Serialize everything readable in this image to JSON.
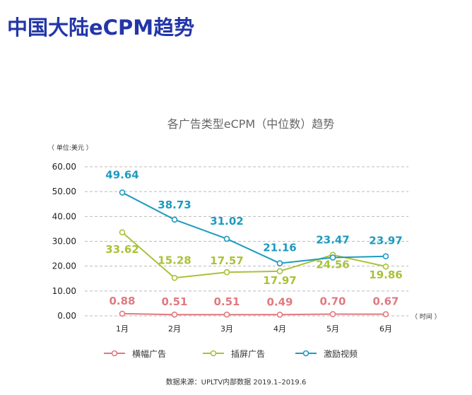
{
  "page_title": "中国大陆eCPM趋势",
  "chart_data": {
    "type": "line",
    "title": "各广告类型eCPM（中位数）趋势",
    "ylabel": "（ 单位:美元 ）",
    "xlabel": "（ 时间 ）",
    "categories": [
      "1月",
      "2月",
      "3月",
      "4月",
      "5月",
      "6月"
    ],
    "ylim": [
      0,
      60
    ],
    "yticks": [
      "0.00",
      "10.00",
      "20.00",
      "30.00",
      "40.00",
      "50.00",
      "60.00"
    ],
    "grid": true,
    "legend_position": "bottom",
    "series": [
      {
        "name": "横幅广告",
        "color": "#e07a80",
        "values": [
          0.88,
          0.51,
          0.51,
          0.49,
          0.7,
          0.67
        ],
        "labels": [
          "0.88",
          "0.51",
          "0.51",
          "0.49",
          "0.70",
          "0.67"
        ]
      },
      {
        "name": "插屏广告",
        "color": "#a9c23a",
        "values": [
          33.62,
          15.28,
          17.57,
          17.97,
          24.56,
          19.86
        ],
        "labels": [
          "33.62",
          "15.28",
          "17.57",
          "17.97",
          "24.56",
          "19.86"
        ]
      },
      {
        "name": "激励视频",
        "color": "#1e9bbf",
        "values": [
          49.64,
          38.73,
          31.02,
          21.16,
          23.47,
          23.97
        ],
        "labels": [
          "49.64",
          "38.73",
          "31.02",
          "21.16",
          "23.47",
          "23.97"
        ]
      }
    ]
  },
  "source": "数据来源：UPLTV内部数据 2019.1–2019.6"
}
